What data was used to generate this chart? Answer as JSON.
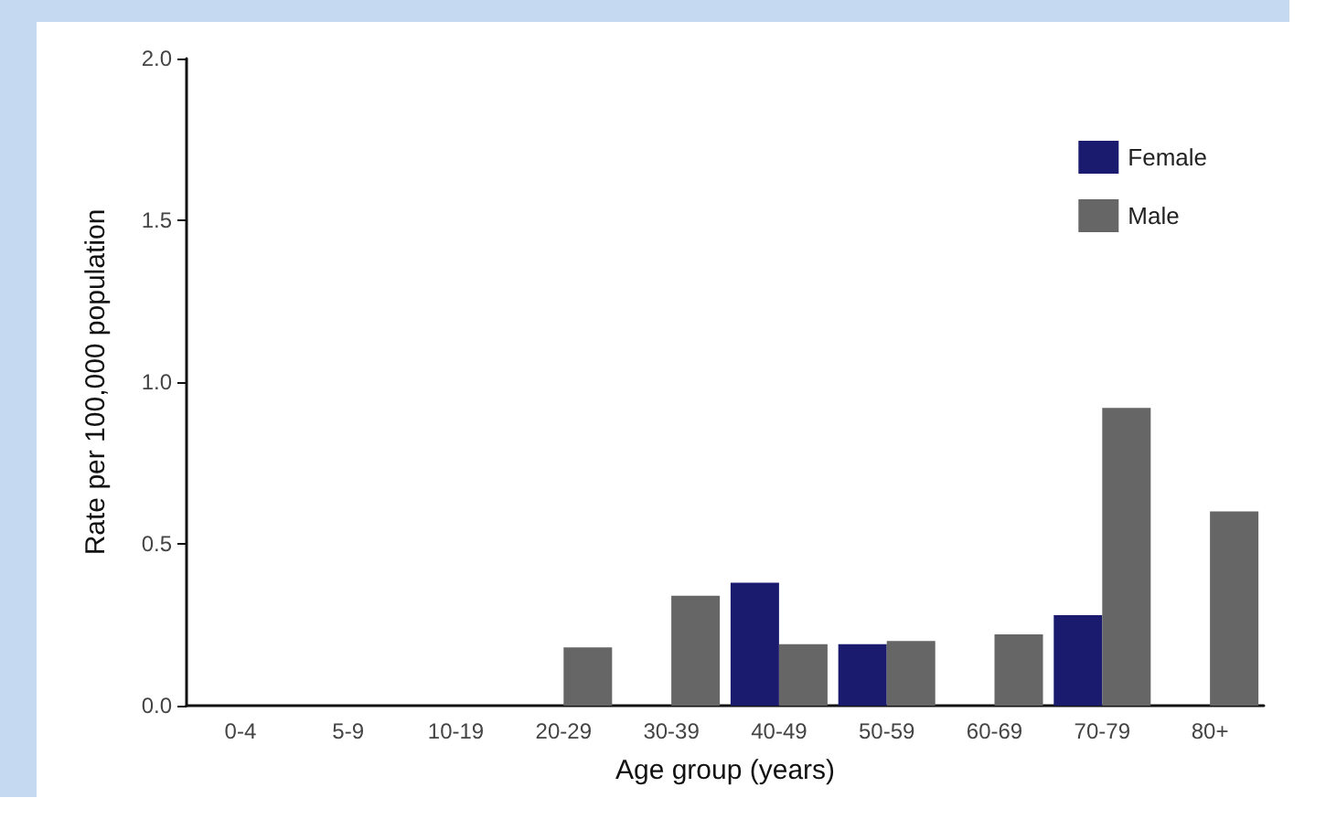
{
  "chart_data": {
    "type": "bar",
    "xlabel": "Age group (years)",
    "ylabel": "Rate per 100,000 population",
    "categories": [
      "0-4",
      "5-9",
      "10-19",
      "20-29",
      "30-39",
      "40-49",
      "50-59",
      "60-69",
      "70-79",
      "80+"
    ],
    "series": [
      {
        "name": "Female",
        "color": "#1a1a6e",
        "values": [
          null,
          null,
          null,
          null,
          null,
          0.38,
          0.19,
          null,
          0.28,
          null
        ]
      },
      {
        "name": "Male",
        "color": "#666666",
        "values": [
          null,
          null,
          null,
          0.18,
          0.34,
          0.19,
          0.2,
          0.22,
          0.92,
          0.6
        ]
      }
    ],
    "ylim": [
      0,
      2
    ],
    "yticks": [
      {
        "value": 0,
        "label": "0.0"
      },
      {
        "value": 0.5,
        "label": "0.5"
      },
      {
        "value": 1,
        "label": "1.0"
      },
      {
        "value": 1.5,
        "label": "1.5"
      },
      {
        "value": 2,
        "label": "2.0"
      }
    ],
    "grid": false,
    "legend": "top right"
  }
}
